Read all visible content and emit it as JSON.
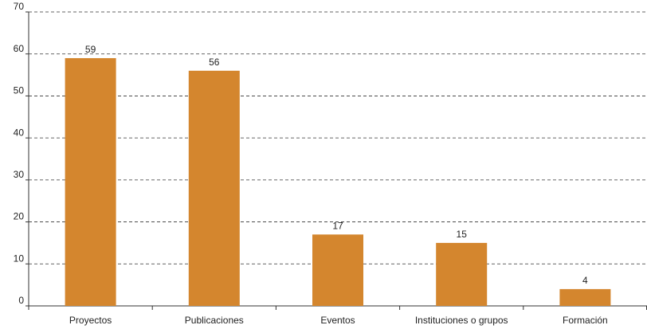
{
  "chart_data": {
    "type": "bar",
    "categories": [
      "Proyectos",
      "Publicaciones",
      "Eventos",
      "Instituciones o grupos",
      "Formación"
    ],
    "values": [
      59,
      56,
      17,
      15,
      4
    ],
    "color": "#d4862e",
    "ylim": [
      0,
      70
    ],
    "yticks": [
      0,
      10,
      20,
      30,
      40,
      50,
      60,
      70
    ],
    "grid": true
  }
}
